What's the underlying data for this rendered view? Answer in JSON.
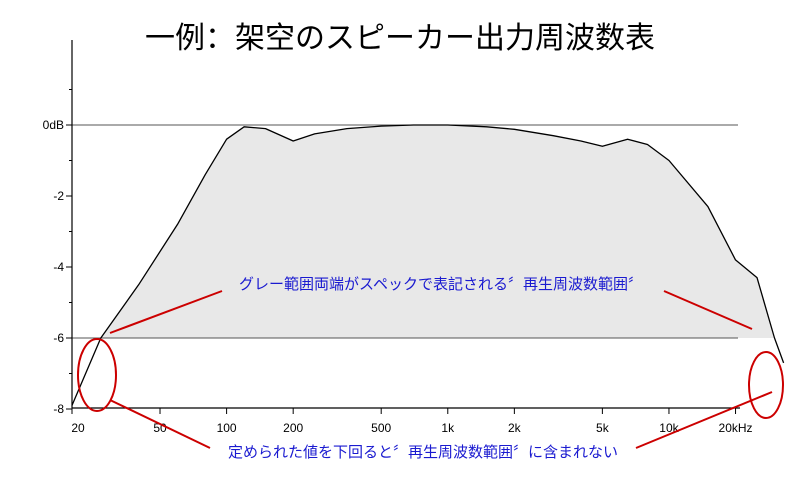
{
  "chart_data": {
    "type": "area",
    "title": "一例：架空のスピーカー出力周波数表",
    "x_scale": "log",
    "x_ticks": [
      {
        "value": 20,
        "label": "20"
      },
      {
        "value": 50,
        "label": "50"
      },
      {
        "value": 100,
        "label": "100"
      },
      {
        "value": 200,
        "label": "200"
      },
      {
        "value": 500,
        "label": "500"
      },
      {
        "value": 1000,
        "label": "1k"
      },
      {
        "value": 2000,
        "label": "2k"
      },
      {
        "value": 5000,
        "label": "5k"
      },
      {
        "value": 10000,
        "label": "10k"
      },
      {
        "value": 20000,
        "label": "20kHz"
      }
    ],
    "y_ticks": [
      {
        "value": 0,
        "label": "0dB"
      },
      {
        "value": -2,
        "label": "-2"
      },
      {
        "value": -4,
        "label": "-4"
      },
      {
        "value": -6,
        "label": "-6"
      },
      {
        "value": -8,
        "label": "-8"
      }
    ],
    "xlim": [
      20,
      36000
    ],
    "ylim": [
      -8,
      2.3
    ],
    "reference_lines_db": [
      0,
      -6
    ],
    "series": [
      {
        "x": [
          20,
          27,
          40,
          60,
          80,
          100,
          120,
          150,
          200,
          250,
          350,
          500,
          700,
          1000,
          1500,
          2000,
          3000,
          4000,
          5000,
          6500,
          8000,
          10000,
          15000,
          20000,
          25000,
          30000,
          33000
        ],
        "y": [
          -7.9,
          -6.0,
          -4.5,
          -2.8,
          -1.4,
          -0.4,
          -0.05,
          -0.1,
          -0.45,
          -0.25,
          -0.1,
          -0.03,
          0.0,
          0.0,
          -0.05,
          -0.12,
          -0.3,
          -0.45,
          -0.6,
          -0.4,
          -0.55,
          -1.0,
          -2.3,
          -3.8,
          -4.3,
          -6.0,
          -6.7
        ]
      }
    ],
    "highlight_band": {
      "from": 27,
      "to": 30000,
      "color": "#e8e8e8"
    },
    "annotations": [
      "グレー範囲両端がスペックで表記される〞再生周波数範囲〞",
      "定められた値を下回ると〞再生周波数範囲〞に含まれない"
    ],
    "colors": {
      "annotation_text": "#1a1ad0",
      "annotation_mark": "#cc0000",
      "fill": "#e8e8e8",
      "curve": "#000000"
    }
  }
}
